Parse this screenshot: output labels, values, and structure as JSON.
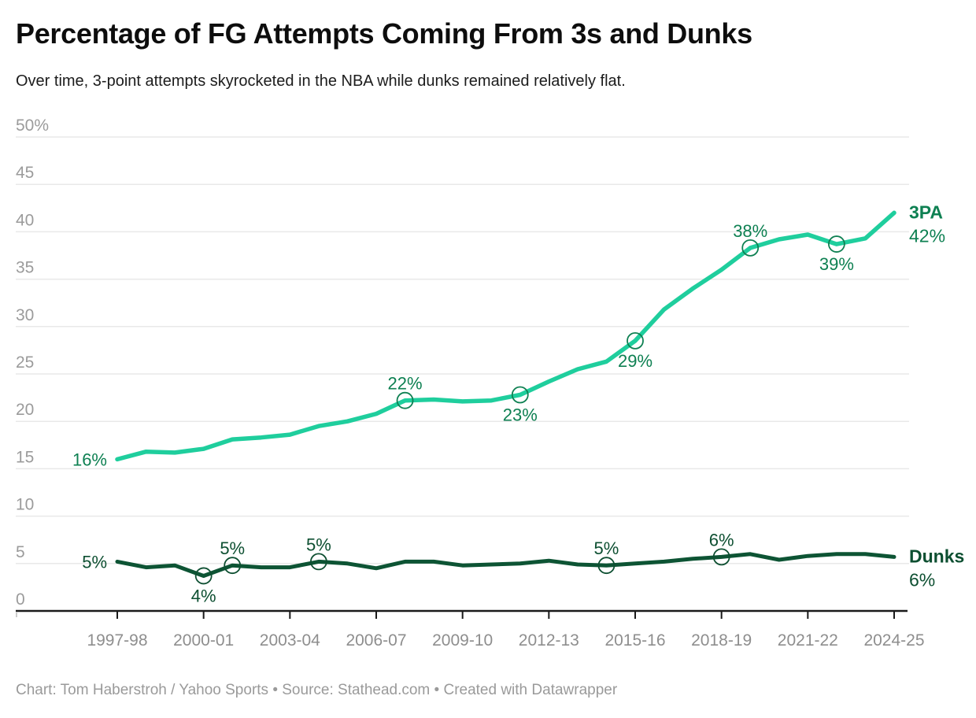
{
  "header": {
    "title": "Percentage of FG Attempts Coming From 3s and Dunks",
    "subtitle": "Over time, 3-point attempts skyrocketed in the NBA while dunks remained relatively flat."
  },
  "footer": {
    "text": "Chart: Tom Haberstroh / Yahoo Sports • Source: Stathead.com • Created with Datawrapper"
  },
  "colors": {
    "background": "#ffffff",
    "grid": "#e9e9e9",
    "axis": "#1a1a1a",
    "end_tick": "#cccccc",
    "y_tick_label": "#9b9b9b",
    "x_tick_label": "#8e8e8e",
    "footer_text": "#9a9a9a",
    "series_3pa": "#1fce9d",
    "series_dunks": "#0d5434",
    "label_3pa": "#0e8052",
    "label_dunks": "#0d4f31"
  },
  "chart_data": {
    "type": "line",
    "title": "Percentage of FG Attempts Coming From 3s and Dunks",
    "subtitle": "Over time, 3-point attempts skyrocketed in the NBA while dunks remained relatively flat.",
    "grid": "horizontal",
    "legend_position": "end-of-line labels",
    "ylim": [
      0,
      50
    ],
    "y_tick_step": 5,
    "y_tick_top_label": "50%",
    "categories": [
      "1997-98",
      "1998-99",
      "1999-00",
      "2000-01",
      "2001-02",
      "2002-03",
      "2003-04",
      "2004-05",
      "2005-06",
      "2006-07",
      "2007-08",
      "2008-09",
      "2009-10",
      "2010-11",
      "2011-12",
      "2012-13",
      "2013-14",
      "2014-15",
      "2015-16",
      "2016-17",
      "2017-18",
      "2018-19",
      "2019-20",
      "2020-21",
      "2021-22",
      "2022-23",
      "2023-24",
      "2024-25"
    ],
    "x_tick_labels": [
      "1997-98",
      "2000-01",
      "2003-04",
      "2006-07",
      "2009-10",
      "2012-13",
      "2015-16",
      "2018-19",
      "2021-22",
      "2024-25"
    ],
    "series": [
      {
        "name": "3PA",
        "color": "#1fce9d",
        "label_color": "#0e8052",
        "line_width": 5.5,
        "end_label": {
          "name": "3PA",
          "value": "42%"
        },
        "values": [
          16.0,
          16.8,
          16.7,
          17.1,
          18.1,
          18.3,
          18.6,
          19.5,
          20.0,
          20.8,
          22.2,
          22.3,
          22.1,
          22.2,
          22.8,
          24.2,
          25.5,
          26.3,
          28.5,
          31.8,
          34.0,
          36.0,
          38.3,
          39.2,
          39.7,
          38.7,
          39.3,
          42.0
        ],
        "annotations": [
          {
            "category": "1997-98",
            "text": "16%",
            "placement": "left",
            "marker": false
          },
          {
            "category": "2007-08",
            "text": "22%",
            "placement": "above",
            "marker": true
          },
          {
            "category": "2011-12",
            "text": "23%",
            "placement": "below",
            "marker": true
          },
          {
            "category": "2015-16",
            "text": "29%",
            "placement": "below",
            "marker": true
          },
          {
            "category": "2019-20",
            "text": "38%",
            "placement": "above",
            "marker": true
          },
          {
            "category": "2022-23",
            "text": "39%",
            "placement": "below",
            "marker": true
          }
        ]
      },
      {
        "name": "Dunks",
        "color": "#0d5434",
        "label_color": "#0d4f31",
        "line_width": 5,
        "end_label": {
          "name": "Dunks",
          "value": "6%"
        },
        "values": [
          5.2,
          4.6,
          4.8,
          3.7,
          4.8,
          4.6,
          4.6,
          5.2,
          5.0,
          4.5,
          5.2,
          5.2,
          4.8,
          4.9,
          5.0,
          5.3,
          4.9,
          4.8,
          5.0,
          5.2,
          5.5,
          5.7,
          6.0,
          5.4,
          5.8,
          6.0,
          6.0,
          5.7
        ],
        "annotations": [
          {
            "category": "1997-98",
            "text": "5%",
            "placement": "left",
            "marker": false
          },
          {
            "category": "2000-01",
            "text": "4%",
            "placement": "below",
            "marker": true
          },
          {
            "category": "2001-02",
            "text": "5%",
            "placement": "above",
            "marker": true
          },
          {
            "category": "2004-05",
            "text": "5%",
            "placement": "above",
            "marker": true
          },
          {
            "category": "2014-15",
            "text": "5%",
            "placement": "above",
            "marker": true
          },
          {
            "category": "2018-19",
            "text": "6%",
            "placement": "above",
            "marker": true
          }
        ]
      }
    ]
  }
}
